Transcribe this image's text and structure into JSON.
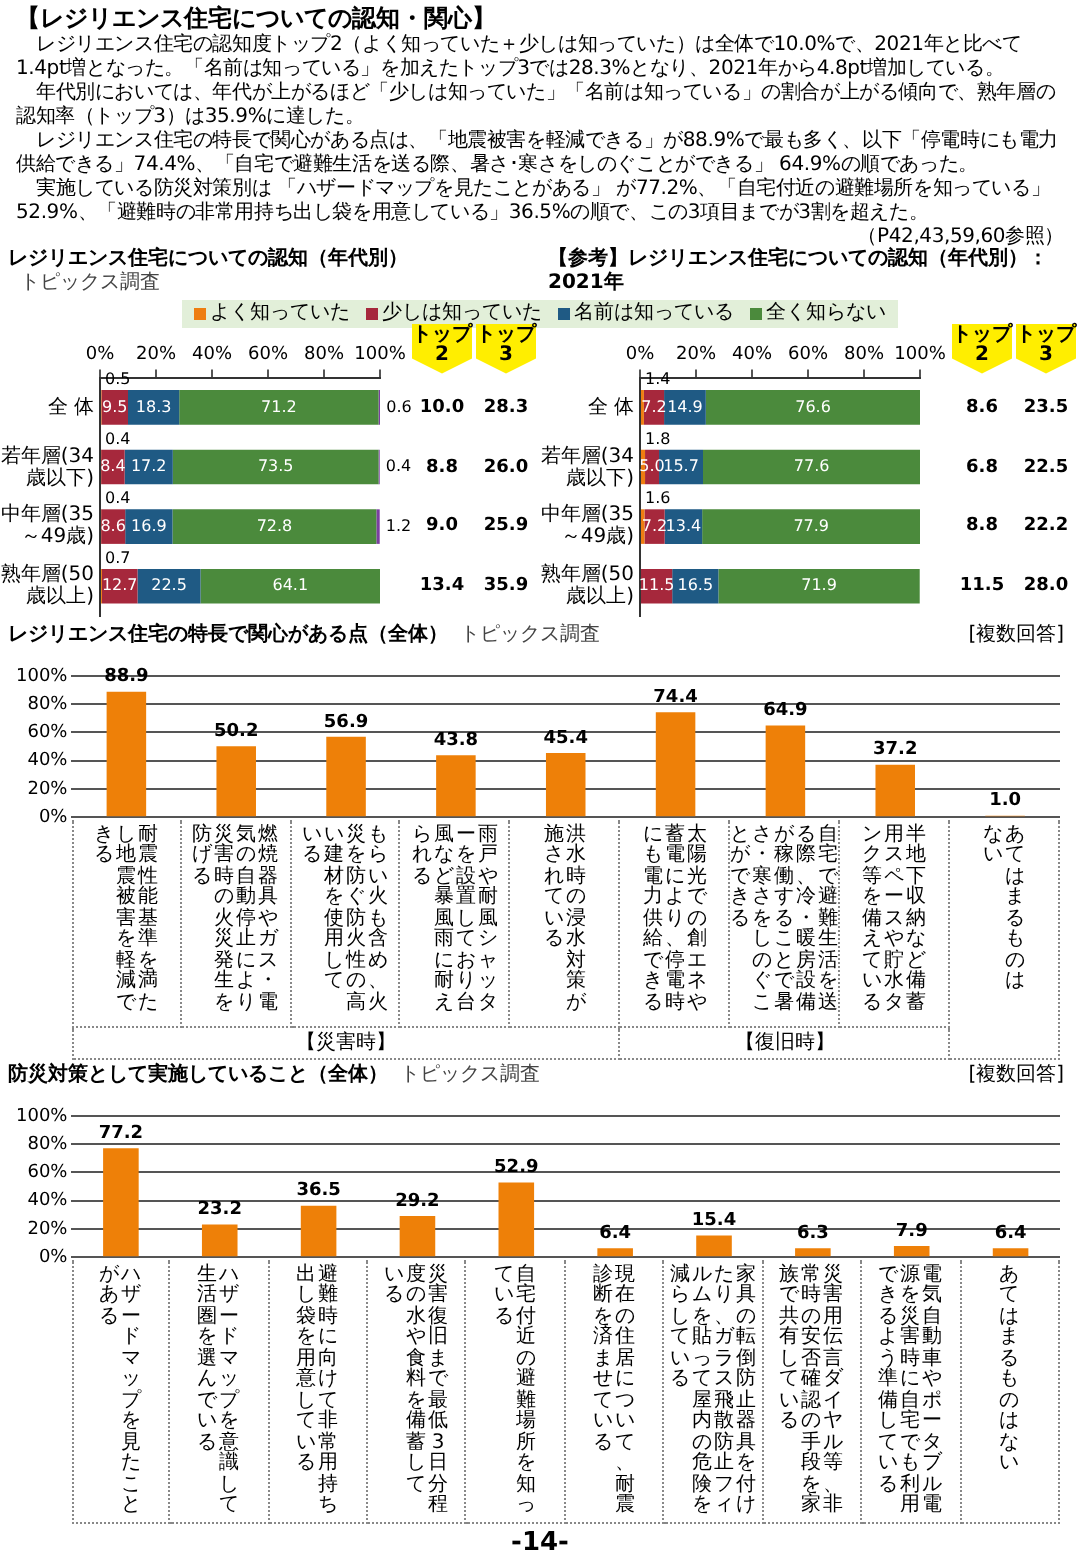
{
  "chart_data": [
    {
      "type": "other",
      "title": "【レジリエンス住宅についての認知・関心】",
      "annotations": [
        "レジリエンス住宅の認知度トップ2（よく知っていた＋少しは知っていた）は全体で10.0%で、2021年と比べて1.4pt増となった。「名前は知っている」を加えたトップ3では28.3%となり、2021年から4.8pt増加している。",
        "年代別においては、年代が上がるほど「少しは知っていた」「名前は知っている」の割合が上がる傾向で、熟年層の認知率（トップ3）は35.9%に達した。",
        "レジリエンス住宅の特長で関心がある点は、「地震被害を軽減できる」が88.9%で最も多く、以下「停電時にも電力供給できる」74.4%、「自宅で避難生活を送る際、暑さ･寒さをしのぐことができる」 64.9%の順であった。",
        "実施している防災対策別は 「ハザードマップを見たことがある」 が77.2%、「自宅付近の避難場所を知っている」 52.9%、「避難時の非常用持ち出し袋を用意している」36.5%の順で、この3項目までが3割を超えた。",
        "（P42,43,59,60参照）"
      ]
    },
    {
      "type": "bar",
      "orientation": "horizontal",
      "stacked": true,
      "title": "レジリエンス住宅についての認知（年代別）",
      "subtitle": "トピックス調査",
      "categories": [
        "全 体",
        "若年層(34歳以下)",
        "中年層(35～49歳)",
        "熟年層(50歳以上)"
      ],
      "series": [
        {
          "name": "よく知っていた",
          "color": "#ee7d11",
          "values": [
            0.5,
            0.4,
            0.4,
            0.7
          ]
        },
        {
          "name": "少しは知っていた",
          "color": "#a6283c",
          "values": [
            9.5,
            8.4,
            8.6,
            12.7
          ]
        },
        {
          "name": "名前は知っている",
          "color": "#1f5a84",
          "values": [
            18.3,
            17.2,
            16.9,
            22.5
          ]
        },
        {
          "name": "全く知らない",
          "color": "#4b8a3c",
          "values": [
            71.2,
            73.5,
            72.8,
            64.1
          ]
        },
        {
          "color": "#7b3fa0",
          "values": [
            0.6,
            0.4,
            1.2,
            null
          ]
        }
      ],
      "xlim": [
        0,
        100
      ],
      "xticks": [
        {
          "value": 0,
          "label": "0%"
        },
        {
          "value": 20,
          "label": "20%"
        },
        {
          "value": 40,
          "label": "40%"
        },
        {
          "value": 60,
          "label": "60%"
        },
        {
          "value": 80,
          "label": "80%"
        },
        {
          "value": 100,
          "label": "100%"
        }
      ],
      "data_labels": true,
      "legend": "top",
      "annotations": [
        "トップ2",
        "トップ3",
        "10.0",
        "28.3",
        "8.8",
        "26.0",
        "9.0",
        "25.9",
        "13.4",
        "35.9"
      ]
    },
    {
      "type": "bar",
      "orientation": "horizontal",
      "stacked": true,
      "title": "【参考】レジリエンス住宅についての認知（年代別）：2021年",
      "categories": [
        "全 体",
        "若年層(34歳以下)",
        "中年層(35～49歳)",
        "熟年層(50歳以上)"
      ],
      "series": [
        {
          "color": "#ee7d11",
          "values": [
            1.4,
            1.8,
            1.6,
            null
          ],
          "value_labels": [
            "1.4",
            "1.8",
            "1.6",
            null
          ]
        },
        {
          "color": "#a6283c",
          "values": [
            7.2,
            5.0,
            7.2,
            11.5
          ],
          "value_labels": [
            "7.2",
            "5.0",
            "7.2",
            "11.5"
          ]
        },
        {
          "color": "#1f5a84",
          "values": [
            14.9,
            15.7,
            13.4,
            16.5
          ],
          "value_labels": [
            "14.9",
            "15.7",
            "13.4",
            "16.5"
          ]
        },
        {
          "color": "#4b8a3c",
          "values": [
            76.6,
            77.6,
            77.9,
            71.9
          ],
          "value_labels": [
            "76.6",
            "77.6",
            "77.9",
            "71.9"
          ]
        }
      ],
      "xlim": [
        0,
        100
      ],
      "xticks": [
        {
          "value": 0,
          "label": "0%"
        },
        {
          "value": 20,
          "label": "20%"
        },
        {
          "value": 40,
          "label": "40%"
        },
        {
          "value": 60,
          "label": "60%"
        },
        {
          "value": 80,
          "label": "80%"
        },
        {
          "value": 100,
          "label": "100%"
        }
      ],
      "annotations": [
        "トップ2",
        "トップ3",
        "8.6",
        "23.5",
        "6.8",
        "22.5",
        "8.8",
        "22.2",
        "11.5",
        "28.0"
      ]
    },
    {
      "type": "bar",
      "title": "レジリエンス住宅の特長で関心がある点（全体）",
      "subtitle": "トピックス調査",
      "categories": [
        "耐震性能基準を満たし地震被害を軽減できる",
        "燃焼器具やガス・電気の自動停止により災害時の火災発生を防げる",
        "もらい火も含め、火災を防ぐ防火性の高い建材を使用している",
        "雨戸や耐風シャッターを設置しており台風など暴風雨に耐えられる",
        "洪水時の浸水対策が施されている",
        "太陽光での創エネや蓄電により、停電時にも電力供給できる",
        "自宅で避難生活を送る際、冷・暖房設備が稼働することで暑さ・寒さをしのぐことができる",
        "半地下収納など備蓄用スペースや貯水タンク等を備えている",
        "あてはまるものはない"
      ],
      "values": [
        88.9,
        50.2,
        56.9,
        43.8,
        45.4,
        74.4,
        64.9,
        37.2,
        1.0
      ],
      "value_labels": [
        "88.9",
        "50.2",
        "56.9",
        "43.8",
        "45.4",
        "74.4",
        "64.9",
        "37.2",
        "1.0"
      ],
      "color": "#ee8008",
      "ylim": [
        0,
        100
      ],
      "yticks": [
        {
          "value": 0,
          "label": "0%"
        },
        {
          "value": 20,
          "label": "20%"
        },
        {
          "value": 40,
          "label": "40%"
        },
        {
          "value": 60,
          "label": "60%"
        },
        {
          "value": 80,
          "label": "80%"
        },
        {
          "value": 100,
          "label": "100%"
        }
      ],
      "grid": "y",
      "annotations": [
        "[複数回答]",
        "【災害時】",
        "【復旧時】"
      ]
    },
    {
      "type": "bar",
      "title": "防災対策として実施していること（全体）",
      "subtitle": "トピックス調査",
      "categories": [
        "ハザードマップを見たことがある",
        "ハザードマップを意識して生活圏を選んでいる",
        "避難時に向けて非常用持ち出し袋を用意している",
        "災害復旧まで最低3日分程度の水や食料を備蓄している",
        "自宅付近の避難場所を知っている",
        "現在の住居について、耐震診断を済ませている",
        "家具の転倒防止器具を付けたり、ガラス飛散防止フィルムを貼って屋内の危険を減らしている",
        "災害用伝言ダイヤル等、非常時の安否確認の手段を家族で共有している",
        "電気自動車やポータブル電源を災害時に自宅でも利用できるよう準備している",
        "あてはまるものはない"
      ],
      "values": [
        77.2,
        23.2,
        36.5,
        29.2,
        52.9,
        6.4,
        15.4,
        6.3,
        7.9,
        6.4
      ],
      "color": "#ee8008",
      "data_labels": true,
      "ylim": [
        0,
        100
      ],
      "yticks": [
        {
          "value": 0,
          "label": "0%"
        },
        {
          "value": 20,
          "label": "20%"
        },
        {
          "value": 40,
          "label": "40%"
        },
        {
          "value": 60,
          "label": "60%"
        },
        {
          "value": 80,
          "label": "80%"
        },
        {
          "value": 100,
          "label": "100%"
        }
      ],
      "grid": "y",
      "annotations": [
        "[複数回答]",
        "-14-"
      ]
    }
  ]
}
